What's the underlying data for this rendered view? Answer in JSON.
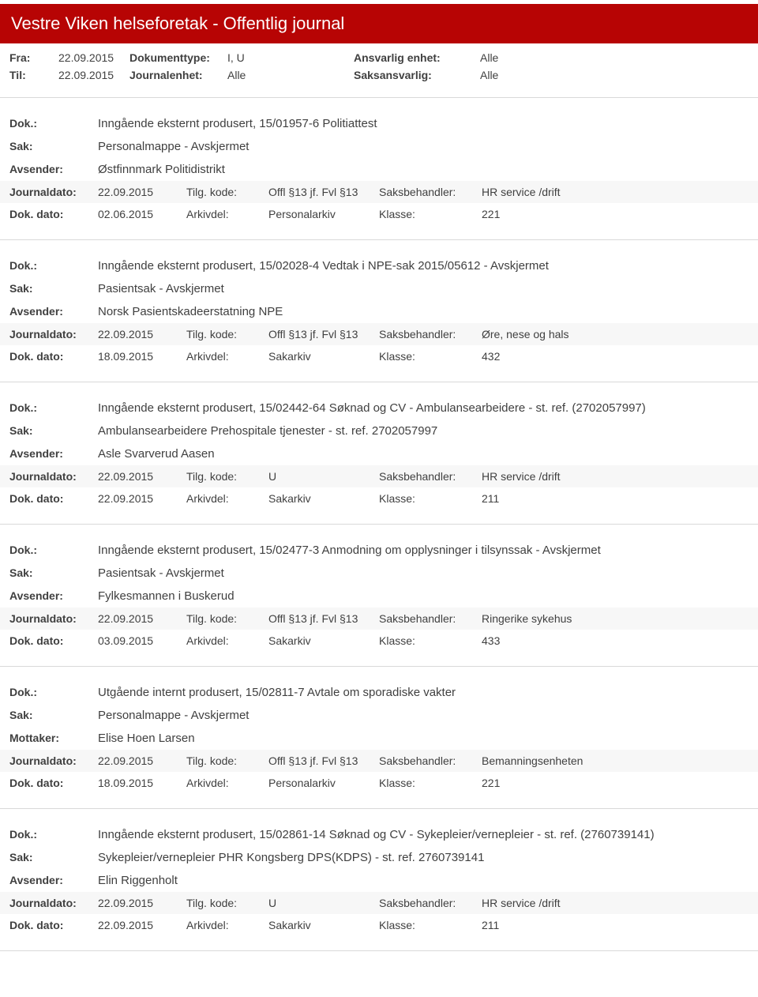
{
  "header": {
    "title": "Vestre Viken helseforetak - Offentlig journal"
  },
  "filters": {
    "fra_label": "Fra:",
    "fra_value": "22.09.2015",
    "til_label": "Til:",
    "til_value": "22.09.2015",
    "doktype_label": "Dokumenttype:",
    "doktype_value": "I, U",
    "journalenhet_label": "Journalenhet:",
    "journalenhet_value": "Alle",
    "ansvarlig_label": "Ansvarlig enhet:",
    "ansvarlig_value": "Alle",
    "saksansvarlig_label": "Saksansvarlig:",
    "saksansvarlig_value": "Alle"
  },
  "labels": {
    "dok": "Dok.:",
    "sak": "Sak:",
    "avsender": "Avsender:",
    "mottaker": "Mottaker:",
    "journaldato": "Journaldato:",
    "dokdato": "Dok. dato:",
    "tilgkode": "Tilg. kode:",
    "arkivdel": "Arkivdel:",
    "saksbehandler": "Saksbehandler:",
    "klasse": "Klasse:"
  },
  "entries": [
    {
      "title": "Inngående eksternt produsert, 15/01957-6 Politiattest",
      "sak": "Personalmappe - Avskjermet",
      "party_label": "Avsender:",
      "party": "Østfinnmark Politidistrikt",
      "journaldato": "22.09.2015",
      "tilgkode": "Offl §13 jf. Fvl §13",
      "saksbehandler": "HR service /drift",
      "dokdato": "02.06.2015",
      "arkivdel": "Personalarkiv",
      "klasse": "221"
    },
    {
      "title": "Inngående eksternt produsert, 15/02028-4 Vedtak i NPE-sak 2015/05612 - Avskjermet",
      "sak": "Pasientsak - Avskjermet",
      "party_label": "Avsender:",
      "party": "Norsk Pasientskadeerstatning NPE",
      "journaldato": "22.09.2015",
      "tilgkode": "Offl §13 jf. Fvl §13",
      "saksbehandler": "Øre, nese og hals",
      "dokdato": "18.09.2015",
      "arkivdel": "Sakarkiv",
      "klasse": "432"
    },
    {
      "title": "Inngående eksternt produsert, 15/02442-64 Søknad og CV - Ambulansearbeidere - st. ref. (2702057997)",
      "sak": "Ambulansearbeidere Prehospitale tjenester - st. ref. 2702057997",
      "party_label": "Avsender:",
      "party": "Asle Svarverud Aasen",
      "journaldato": "22.09.2015",
      "tilgkode": "U",
      "saksbehandler": "HR service /drift",
      "dokdato": "22.09.2015",
      "arkivdel": "Sakarkiv",
      "klasse": "211"
    },
    {
      "title": "Inngående eksternt produsert, 15/02477-3 Anmodning om opplysninger i tilsynssak - Avskjermet",
      "sak": "Pasientsak - Avskjermet",
      "party_label": "Avsender:",
      "party": "Fylkesmannen i Buskerud",
      "journaldato": "22.09.2015",
      "tilgkode": "Offl §13 jf. Fvl §13",
      "saksbehandler": "Ringerike sykehus",
      "dokdato": "03.09.2015",
      "arkivdel": "Sakarkiv",
      "klasse": "433"
    },
    {
      "title": "Utgående internt produsert, 15/02811-7 Avtale om sporadiske vakter",
      "sak": "Personalmappe - Avskjermet",
      "party_label": "Mottaker:",
      "party": "Elise Hoen Larsen",
      "journaldato": "22.09.2015",
      "tilgkode": "Offl §13 jf. Fvl §13",
      "saksbehandler": "Bemanningsenheten",
      "dokdato": "18.09.2015",
      "arkivdel": "Personalarkiv",
      "klasse": "221"
    },
    {
      "title": "Inngående eksternt produsert, 15/02861-14 Søknad og CV - Sykepleier/vernepleier - st. ref. (2760739141)",
      "sak": "Sykepleier/vernepleier PHR Kongsberg DPS(KDPS) - st. ref. 2760739141",
      "party_label": "Avsender:",
      "party": "Elin Riggenholt",
      "journaldato": "22.09.2015",
      "tilgkode": "U",
      "saksbehandler": "HR service /drift",
      "dokdato": "22.09.2015",
      "arkivdel": "Sakarkiv",
      "klasse": "211"
    }
  ]
}
